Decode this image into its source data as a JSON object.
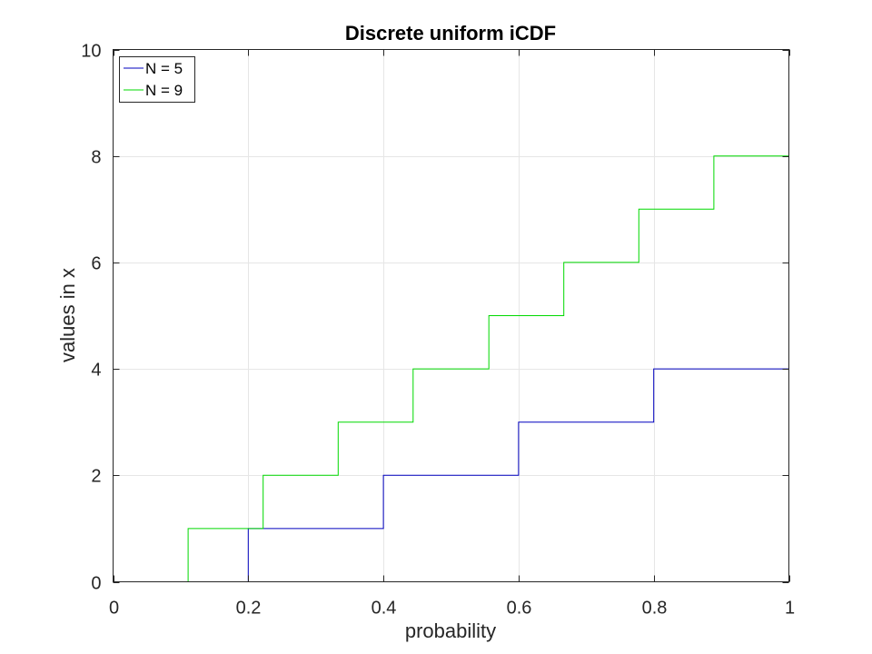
{
  "chart_data": {
    "type": "line",
    "title": "Discrete uniform iCDF",
    "xlabel": "probability",
    "ylabel": "values in x",
    "xlim": [
      0,
      1
    ],
    "ylim": [
      0,
      10
    ],
    "xticks": [
      0,
      0.2,
      0.4,
      0.6,
      0.8,
      1
    ],
    "xtick_labels": [
      "0",
      "0.2",
      "0.4",
      "0.6",
      "0.8",
      "1"
    ],
    "yticks": [
      0,
      2,
      4,
      6,
      8,
      10
    ],
    "ytick_labels": [
      "0",
      "2",
      "4",
      "6",
      "8",
      "10"
    ],
    "grid": true,
    "legend_position": "top-left",
    "series": [
      {
        "name": "N = 5",
        "color": "#0000bf",
        "step": true,
        "x": [
          0,
          0.2,
          0.4,
          0.6,
          0.8,
          1
        ],
        "y": [
          0,
          1,
          2,
          3,
          4,
          4
        ]
      },
      {
        "name": "N = 9",
        "color": "#00d900",
        "step": true,
        "x": [
          0,
          0.111,
          0.222,
          0.333,
          0.444,
          0.556,
          0.667,
          0.778,
          0.889,
          1
        ],
        "y": [
          0,
          1,
          2,
          3,
          4,
          5,
          6,
          7,
          8,
          8
        ]
      }
    ]
  }
}
